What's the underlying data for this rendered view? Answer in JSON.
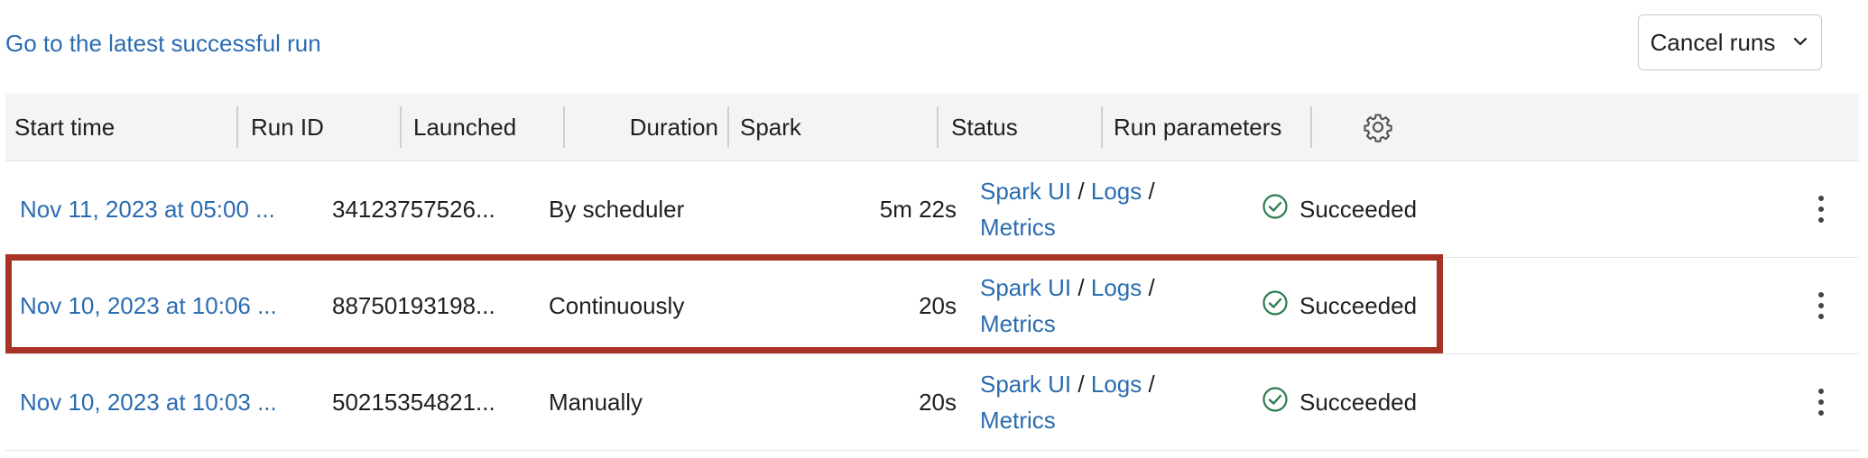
{
  "top": {
    "latest_link": "Go to the latest successful run",
    "cancel_button": "Cancel runs"
  },
  "columns": {
    "start_time": "Start time",
    "run_id": "Run ID",
    "launched": "Launched",
    "duration": "Duration",
    "spark": "Spark",
    "status": "Status",
    "run_parameters": "Run parameters"
  },
  "rows": [
    {
      "start_time": "Nov 11, 2023 at 05:00 ...",
      "run_id": "34123757526...",
      "launched": "By scheduler",
      "duration": "5m 22s",
      "spark_ui": "Spark UI",
      "logs": "Logs",
      "metrics": "Metrics",
      "status": "Succeeded"
    },
    {
      "start_time": "Nov 10, 2023 at 10:06 ...",
      "run_id": "88750193198...",
      "launched": "Continuously",
      "duration": "20s",
      "spark_ui": "Spark UI",
      "logs": "Logs",
      "metrics": "Metrics",
      "status": "Succeeded"
    },
    {
      "start_time": "Nov 10, 2023 at 10:03 ...",
      "run_id": "50215354821...",
      "launched": "Manually",
      "duration": "20s",
      "spark_ui": "Spark UI",
      "logs": "Logs",
      "metrics": "Metrics",
      "status": "Succeeded"
    }
  ],
  "separator": "/",
  "colors": {
    "link": "#2b6cb0",
    "success": "#2e7d4f",
    "highlight": "#a83225",
    "header_bg": "#f3f4f5"
  },
  "icons": {
    "cancel_chevron": "chevron-down-icon",
    "settings": "gear-icon",
    "status": "check-circle-icon",
    "row_menu": "kebab-menu-icon"
  }
}
